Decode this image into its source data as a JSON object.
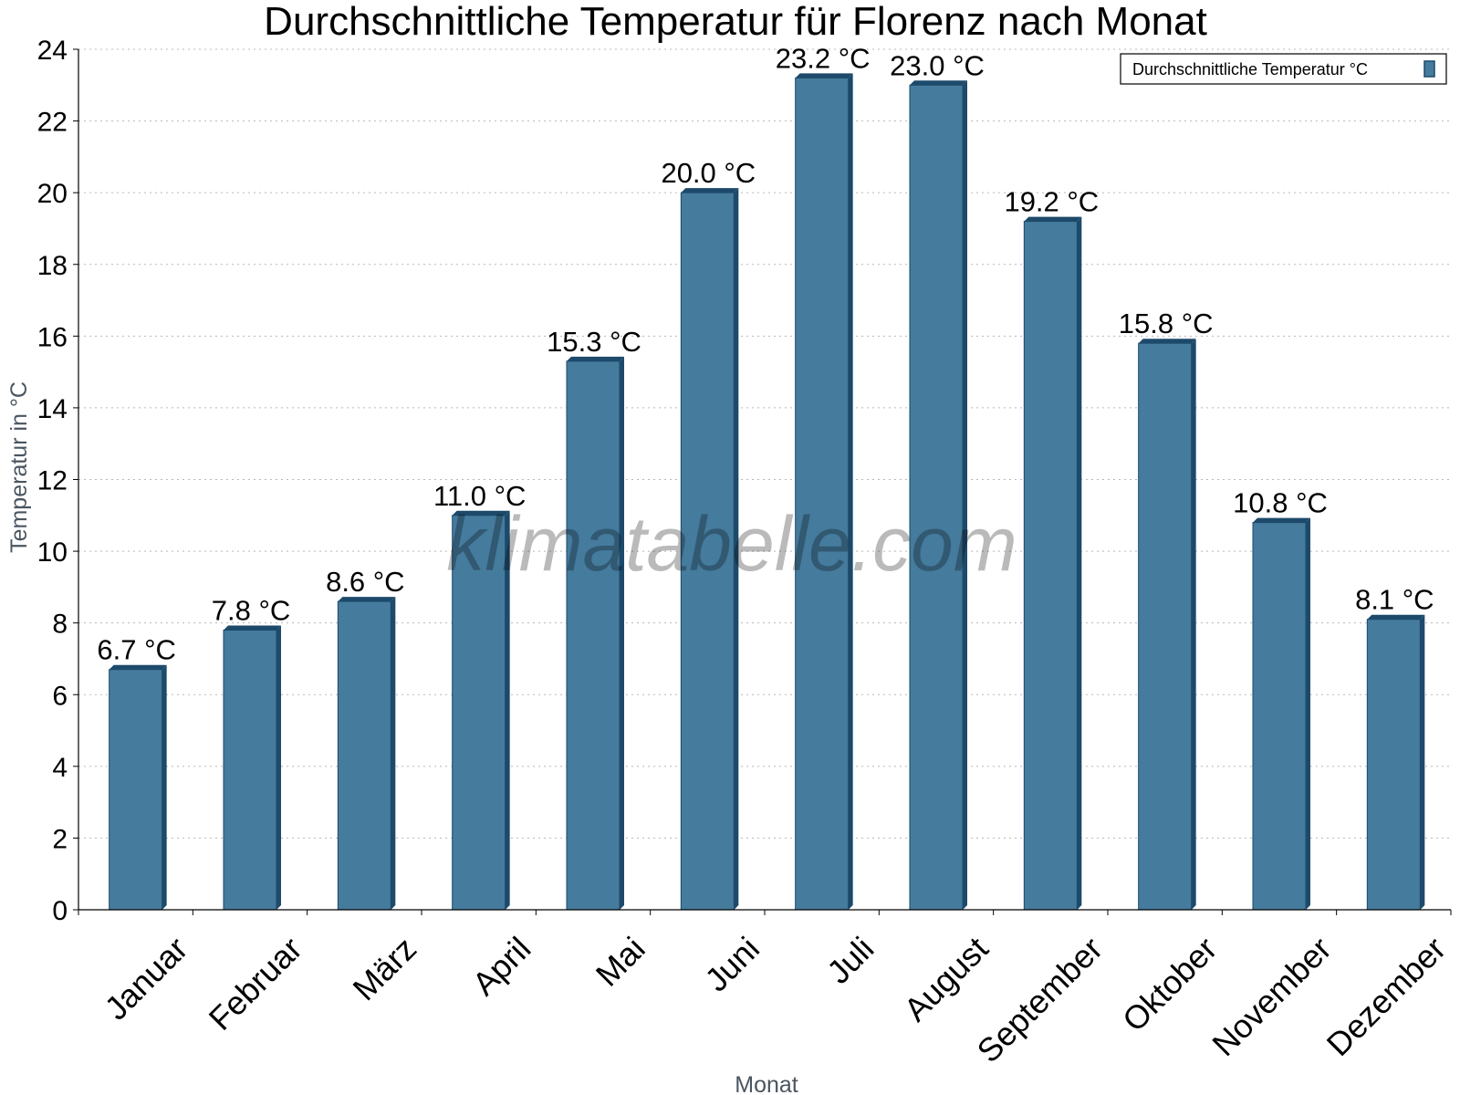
{
  "chart_data": {
    "type": "bar",
    "title": "Durchschnittliche Temperatur für Florenz nach Monat",
    "xlabel": "Monat",
    "ylabel": "Temperatur in °C",
    "categories": [
      "Januar",
      "Februar",
      "März",
      "April",
      "Mai",
      "Juni",
      "Juli",
      "August",
      "September",
      "Oktober",
      "November",
      "Dezember"
    ],
    "series": [
      {
        "name": "Durchschnittliche Temperatur °C",
        "values": [
          6.7,
          7.8,
          8.6,
          11.0,
          15.3,
          20.0,
          23.2,
          23.0,
          19.2,
          15.8,
          10.8,
          8.1
        ],
        "data_labels": [
          "6.7 °C",
          "7.8 °C",
          "8.6 °C",
          "11.0 °C",
          "15.3 °C",
          "20.0 °C",
          "23.2 °C",
          "23.0 °C",
          "19.2 °C",
          "15.8 °C",
          "10.8 °C",
          "8.1 °C"
        ]
      }
    ],
    "ylim": [
      0,
      24
    ],
    "yticks": [
      0,
      2,
      4,
      6,
      8,
      10,
      12,
      14,
      16,
      18,
      20,
      22,
      24
    ],
    "grid": true,
    "legend": "top-right",
    "colors": {
      "bar_face": "#457b9d",
      "bar_side": "#1d4a6b",
      "bar_edge": "#1d4a6b"
    },
    "watermark": "klimatabelle.com"
  }
}
